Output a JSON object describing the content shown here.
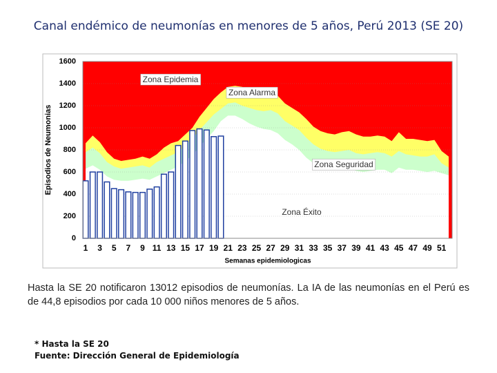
{
  "chart_data": {
    "type": "endemic_channel",
    "title": "Canal endémico de neumonías en menores de 5 años, Perú 2013 (SE 20)",
    "x_label": "Semanas epidemiologicas",
    "y_label": "Episodios  de Neumonias",
    "categories": [
      1,
      null,
      3,
      null,
      5,
      null,
      7,
      null,
      9,
      null,
      11,
      null,
      13,
      null,
      15,
      null,
      17,
      null,
      19,
      null,
      21,
      null,
      23,
      null,
      25,
      null,
      27,
      null,
      29,
      null,
      31,
      null,
      33,
      null,
      35,
      null,
      37,
      null,
      39,
      null,
      41,
      null,
      43,
      null,
      45,
      null,
      47,
      null,
      49,
      null,
      51,
      null
    ],
    "ylim": [
      0,
      1600
    ],
    "yticks": [
      0,
      200,
      400,
      600,
      800,
      1000,
      1200,
      1400,
      1600
    ],
    "grid": true,
    "epidemic_zone": {
      "label": "Zona Epidemia",
      "color": "#ff0000"
    },
    "zones": [
      {
        "label": "Zona Alarma",
        "color": "#ffff66",
        "values": [
          860,
          930,
          870,
          780,
          720,
          700,
          710,
          720,
          740,
          720,
          760,
          820,
          860,
          880,
          940,
          1000,
          1100,
          1180,
          1260,
          1320,
          1370,
          1380,
          1370,
          1330,
          1310,
          1290,
          1320,
          1290,
          1220,
          1180,
          1140,
          1080,
          1010,
          970,
          950,
          940,
          960,
          970,
          940,
          920,
          920,
          930,
          920,
          880,
          960,
          900,
          900,
          890,
          880,
          890,
          790,
          740
        ]
      },
      {
        "label": "Zona Seguridad",
        "color": "#ccffcc",
        "values": [
          780,
          820,
          770,
          690,
          650,
          630,
          640,
          650,
          660,
          640,
          690,
          720,
          750,
          780,
          840,
          900,
          980,
          1050,
          1120,
          1170,
          1220,
          1230,
          1200,
          1180,
          1160,
          1150,
          1160,
          1130,
          1060,
          1020,
          980,
          910,
          850,
          810,
          790,
          780,
          790,
          800,
          770,
          760,
          770,
          780,
          770,
          740,
          790,
          760,
          750,
          740,
          740,
          760,
          680,
          640
        ]
      },
      {
        "label": "Zona Éxito",
        "color": "#ffffff",
        "values": [
          630,
          660,
          620,
          560,
          530,
          520,
          520,
          530,
          540,
          530,
          560,
          590,
          620,
          650,
          700,
          750,
          830,
          900,
          970,
          1060,
          1110,
          1110,
          1080,
          1040,
          1010,
          990,
          980,
          950,
          890,
          850,
          800,
          730,
          680,
          650,
          630,
          620,
          630,
          640,
          610,
          600,
          610,
          620,
          620,
          590,
          640,
          620,
          620,
          610,
          600,
          610,
          590,
          570
        ]
      }
    ],
    "bars": {
      "color": "#1f3fa0",
      "values": [
        520,
        600,
        600,
        510,
        450,
        440,
        420,
        415,
        415,
        445,
        465,
        580,
        600,
        840,
        880,
        975,
        990,
        980,
        920,
        925
      ]
    }
  },
  "text": {
    "paragraph": "Hasta la  SE 20 notificaron 13012 episodios de neumonías. La IA de las neumonías en el Perú es de 44,8 episodios por cada  10 000 niños menores de 5 años.",
    "notes": [
      "* Hasta la SE 20",
      "Fuente: Dirección General de Epidemiología"
    ]
  }
}
